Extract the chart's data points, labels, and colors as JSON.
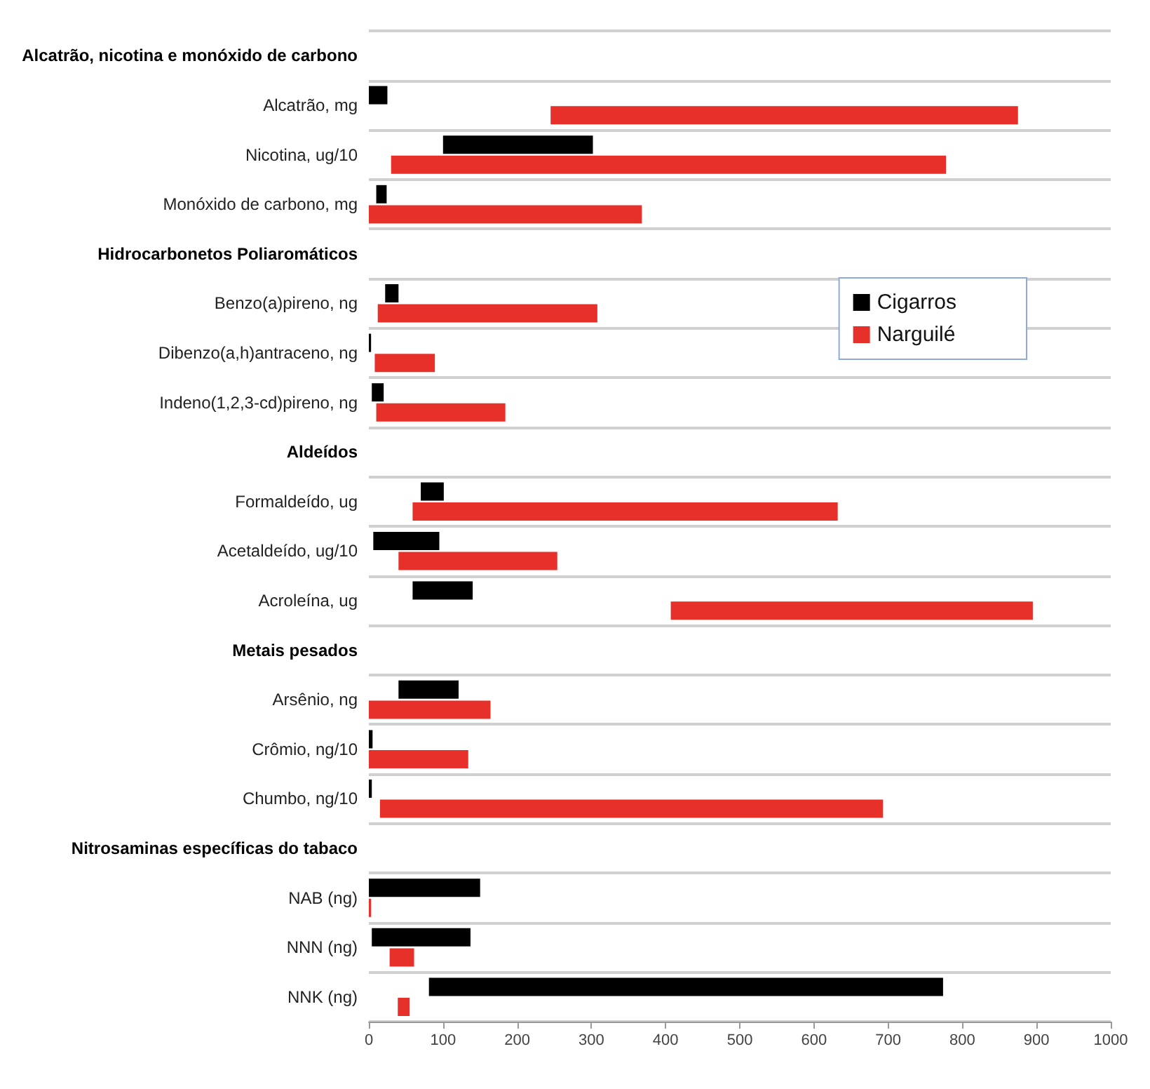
{
  "chart_data": {
    "type": "bar",
    "orientation": "horizontal",
    "categories": [
      "Alcatrão, nicotina e monóxido de carbono",
      "Alcatrão, mg",
      "Nicotina, ug/10",
      "Monóxido de carbono, mg",
      "Hidrocarbonetos Poliaromáticos",
      "Benzo(a)pireno, ng",
      "Dibenzo(a,h)antraceno, ng",
      "Indeno(1,2,3-cd)pireno, ng",
      "Aldeídos",
      "Formaldeído, ug",
      "Acetaldeído, ug/10",
      "Acroleína, ug",
      "Metais pesados",
      "Arsênio, ng",
      "Crômio, ng/10",
      "Chumbo, ng/10",
      "Nitrosaminas específicas do tabaco",
      "NAB (ng)",
      "NNN (ng)",
      "NNK (ng)"
    ],
    "series": [
      {
        "name": "Cigarros",
        "color": "#000000",
        "base": [
          null,
          0,
          100,
          10,
          null,
          22,
          0,
          4,
          null,
          70,
          6,
          59,
          null,
          40,
          0,
          0,
          null,
          0,
          4,
          81
        ],
        "values": [
          null,
          25,
          202,
          14,
          null,
          18,
          3,
          16,
          null,
          31,
          89,
          81,
          null,
          81,
          5,
          4,
          null,
          150,
          133,
          693
        ]
      },
      {
        "name": "Narguilé",
        "color": "#e8302a",
        "base": [
          null,
          245,
          30,
          0,
          null,
          12,
          8,
          10,
          null,
          59,
          40,
          407,
          null,
          0,
          0,
          15,
          null,
          0,
          28,
          39
        ],
        "values": [
          null,
          630,
          748,
          368,
          null,
          296,
          81,
          174,
          null,
          573,
          214,
          488,
          null,
          164,
          134,
          678,
          null,
          3,
          33,
          16
        ]
      }
    ],
    "xlim": [
      0,
      1000
    ],
    "xticks": [
      0,
      100,
      200,
      300,
      400,
      500,
      600,
      700,
      800,
      900,
      1000
    ],
    "grid": "y",
    "legend": "right"
  }
}
